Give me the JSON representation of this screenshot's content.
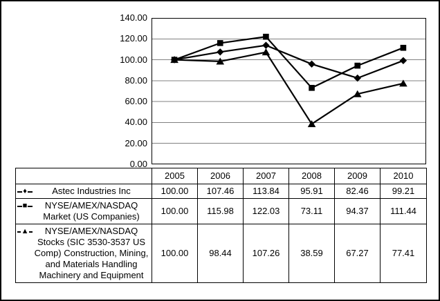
{
  "chart_data": {
    "type": "line",
    "categories": [
      "2005",
      "2006",
      "2007",
      "2008",
      "2009",
      "2010"
    ],
    "series": [
      {
        "name": "Astec Industries Inc",
        "marker": "diamond",
        "glyph": "♦",
        "values": [
          100.0,
          107.46,
          113.84,
          95.91,
          82.46,
          99.21
        ]
      },
      {
        "name": "NYSE/AMEX/NASDAQ Market (US Companies)",
        "marker": "square",
        "glyph": "■",
        "values": [
          100.0,
          115.98,
          122.03,
          73.11,
          94.37,
          111.44
        ]
      },
      {
        "name": "NYSE/AMEX/NASDAQ Stocks (SIC 3530-3537 US Comp) Construction, Mining, and Materials Handling Machinery and Equipment",
        "marker": "triangle",
        "glyph": "▲",
        "values": [
          100.0,
          98.44,
          107.26,
          38.59,
          67.27,
          77.41
        ]
      }
    ],
    "ylim": [
      0,
      140
    ],
    "y_ticks": [
      "0.00",
      "20.00",
      "40.00",
      "60.00",
      "80.00",
      "100.00",
      "120.00",
      "140.00"
    ],
    "grid": true,
    "legend_position": "table-left",
    "colors": {
      "line": "#000000",
      "grid": "#808080",
      "border": "#000000"
    }
  },
  "table": {
    "years": [
      "2005",
      "2006",
      "2007",
      "2008",
      "2009",
      "2010"
    ],
    "rows": [
      {
        "glyph": "♦",
        "label": "Astec Industries Inc",
        "cells": [
          "100.00",
          "107.46",
          "113.84",
          "95.91",
          "82.46",
          "99.21"
        ]
      },
      {
        "glyph": "■",
        "label": "NYSE/AMEX/NASDAQ Market (US Companies)",
        "cells": [
          "100.00",
          "115.98",
          "122.03",
          "73.11",
          "94.37",
          "111.44"
        ]
      },
      {
        "glyph": "▲",
        "label": "NYSE/AMEX/NASDAQ Stocks (SIC 3530-3537 US Comp) Construction, Mining, and Materials Handling Machinery and Equipment",
        "cells": [
          "100.00",
          "98.44",
          "107.26",
          "38.59",
          "67.27",
          "77.41"
        ]
      }
    ]
  }
}
